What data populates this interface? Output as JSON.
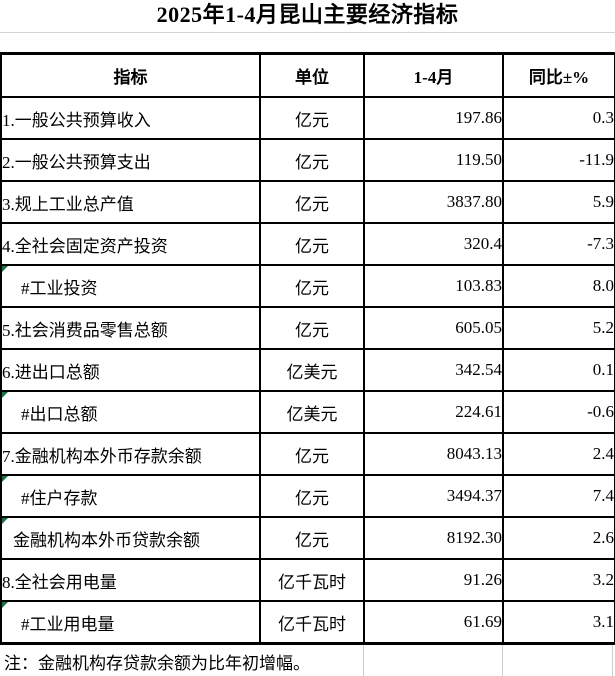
{
  "title": "2025年1-4月昆山主要经济指标",
  "colors": {
    "border": "#000000",
    "gridline": "#cccccc",
    "flag_triangle": "#1e7145"
  },
  "table": {
    "headers": {
      "indicator": "指标",
      "unit": "单位",
      "period": "1-4月",
      "yoy": "同比±%"
    },
    "rows": [
      {
        "indicator": "1.一般公共预算收入",
        "unit": "亿元",
        "value": "197.86",
        "yoy": "0.3",
        "indent": 0,
        "flag": false
      },
      {
        "indicator": "2.一般公共预算支出",
        "unit": "亿元",
        "value": "119.50",
        "yoy": "-11.9",
        "indent": 0,
        "flag": false
      },
      {
        "indicator": "3.规上工业总产值",
        "unit": "亿元",
        "value": "3837.80",
        "yoy": "5.9",
        "indent": 0,
        "flag": false
      },
      {
        "indicator": "4.全社会固定资产投资",
        "unit": "亿元",
        "value": "320.4",
        "yoy": "-7.3",
        "indent": 0,
        "flag": false
      },
      {
        "indicator": "#工业投资",
        "unit": "亿元",
        "value": "103.83",
        "yoy": "8.0",
        "indent": 2,
        "flag": true
      },
      {
        "indicator": "5.社会消费品零售总额",
        "unit": "亿元",
        "value": "605.05",
        "yoy": "5.2",
        "indent": 0,
        "flag": false
      },
      {
        "indicator": "6.进出口总额",
        "unit": "亿美元",
        "value": "342.54",
        "yoy": "0.1",
        "indent": 0,
        "flag": false
      },
      {
        "indicator": "#出口总额",
        "unit": "亿美元",
        "value": "224.61",
        "yoy": "-0.6",
        "indent": 2,
        "flag": true
      },
      {
        "indicator": "7.金融机构本外币存款余额",
        "unit": "亿元",
        "value": "8043.13",
        "yoy": "2.4",
        "indent": 0,
        "flag": false
      },
      {
        "indicator": "#住户存款",
        "unit": "亿元",
        "value": "3494.37",
        "yoy": "7.4",
        "indent": 2,
        "flag": true
      },
      {
        "indicator": "金融机构本外币贷款余额",
        "unit": "亿元",
        "value": "8192.30",
        "yoy": "2.6",
        "indent": 1,
        "flag": true
      },
      {
        "indicator": "8.全社会用电量",
        "unit": "亿千瓦时",
        "value": "91.26",
        "yoy": "3.2",
        "indent": 0,
        "flag": false
      },
      {
        "indicator": "#工业用电量",
        "unit": "亿千瓦时",
        "value": "61.69",
        "yoy": "3.1",
        "indent": 2,
        "flag": true
      }
    ]
  },
  "note": "注：金融机构存贷款余额为比年初增幅。"
}
